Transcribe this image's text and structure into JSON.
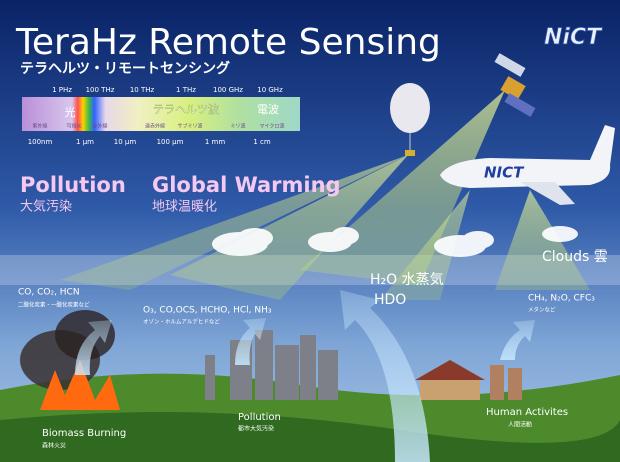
{
  "header": {
    "title": "TeraHz Remote Sensing",
    "subtitle": "テラヘルツ・リモートセンシング",
    "logo": "NiCT"
  },
  "spectrum": {
    "frequencies": [
      "1 PHz",
      "100 THz",
      "10 THz",
      "1 THz",
      "100 GHz",
      "10 GHz"
    ],
    "wavelengths": [
      "100nm",
      "1 μm",
      "10 μm",
      "100 μm",
      "1 mm",
      "1 cm"
    ],
    "bands": [
      "光",
      "テラヘルツ波",
      "電波"
    ],
    "sub_bands": [
      "紫外線",
      "可視光",
      "赤外線",
      "遠赤外線",
      "サブミリ波",
      "ミリ波",
      "マイクロ波"
    ]
  },
  "themes": [
    {
      "label": "Pollution",
      "label_ja": "大気汚染"
    },
    {
      "label": "Global Warming",
      "label_ja": "地球温暖化"
    }
  ],
  "molecules": [
    {
      "formula": "CO, CO₂, HCN",
      "note": "二酸化炭素・一酸化炭素など"
    },
    {
      "formula": "O₃, CO,OCS, HCHO, HCl, NH₃",
      "note": "オゾン・ホルムアルデヒドなど"
    },
    {
      "formula": "H₂O 水蒸気",
      "note": "HDO"
    },
    {
      "formula": "CH₄, N₂O, CFC₃",
      "note": "メタンなど"
    }
  ],
  "clouds_label": "Clouds 雲",
  "ground_labels": [
    {
      "label": "Biomass Burning",
      "label_ja": "森林火災"
    },
    {
      "label": "Pollution",
      "label_ja": "都市大気汚染"
    },
    {
      "label": "Human Activites",
      "label_ja": "人間活動"
    }
  ],
  "aircraft_logo": "NICT"
}
